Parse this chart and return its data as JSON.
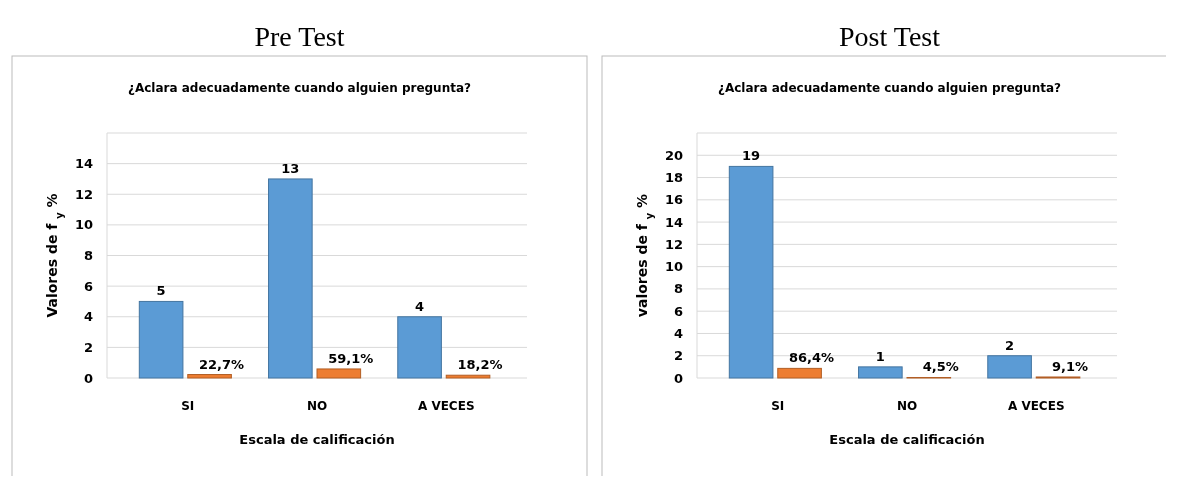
{
  "chart_data": [
    {
      "type": "bar",
      "title": "Pre Test",
      "subtitle": "¿Aclara adecuadamente cuando alguien pregunta?",
      "xlabel": "Escala de calificación",
      "ylabel": "Valores de f $_{y}$ %",
      "categories": [
        "SI",
        "NO",
        "A VECES"
      ],
      "ylim": [
        0,
        16
      ],
      "yticks": [
        0,
        2,
        4,
        6,
        8,
        10,
        12,
        14,
        {
          "value": 16,
          "label": null
        }
      ],
      "grid": "y",
      "series": [
        {
          "color": "#5b9bd5",
          "values": [
            5,
            13,
            4
          ],
          "value_labels": [
            "5",
            "13",
            "4"
          ]
        },
        {
          "color": "#ed7d31",
          "values": [
            0.227,
            0.591,
            0.182
          ],
          "value_labels": [
            "22,7%",
            "59,1%",
            "18,2%"
          ]
        }
      ]
    },
    {
      "type": "bar",
      "title": "Post Test",
      "subtitle": "¿Aclara adecuadamente cuando alguien pregunta?",
      "xlabel": "Escala de calificación",
      "ylabel": "valores de f $_{y}$ %",
      "categories": [
        "SI",
        "NO",
        "A VECES"
      ],
      "ylim": [
        0,
        22
      ],
      "yticks": [
        0,
        2,
        4,
        6,
        8,
        10,
        12,
        14,
        16,
        18,
        20,
        {
          "value": 22,
          "label": null
        }
      ],
      "grid": "y",
      "series": [
        {
          "color": "#5b9bd5",
          "values": [
            19,
            1,
            2
          ],
          "value_labels": [
            "19",
            "1",
            "2"
          ]
        },
        {
          "color": "#ed7d31",
          "values": [
            0.864,
            0.045,
            0.091
          ],
          "value_labels": [
            "86,4%",
            "4,5%",
            "9,1%"
          ]
        }
      ]
    }
  ]
}
